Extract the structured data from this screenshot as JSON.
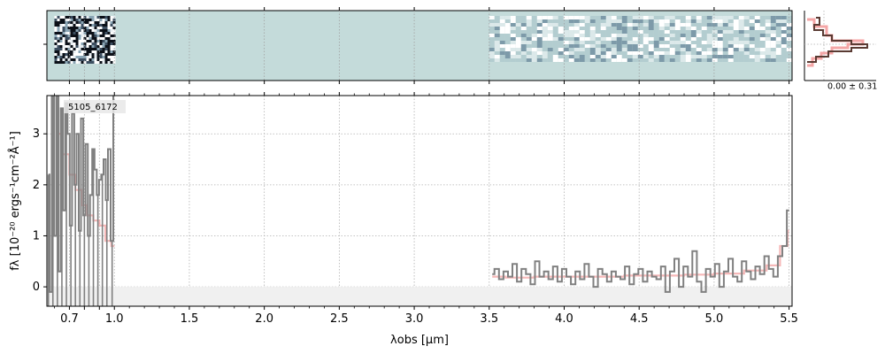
{
  "chart_data": [
    {
      "panel": "2d-spectrum",
      "type": "heatmap",
      "description_colors": {
        "background": "#c4dbda",
        "dark": "#0a0f1a"
      },
      "regions_um": [
        [
          0.6,
          1.0
        ],
        [
          3.5,
          5.5
        ]
      ]
    },
    {
      "panel": "1d-spectrum",
      "type": "line",
      "object_label": "5105_6172",
      "xlabel": "λobs [μm]",
      "ylabel": "fλ [10⁻²⁰ ergs⁻¹cm⁻²Å⁻¹]",
      "xlim": [
        0.55,
        5.52
      ],
      "ylim": [
        -0.38,
        3.75
      ],
      "x_ticks": [
        0.7,
        0.8,
        0.9,
        1.0,
        1.5,
        2.0,
        2.5,
        3.0,
        3.5,
        4.0,
        4.5,
        5.0,
        5.5
      ],
      "x_tick_labels": [
        "0.7",
        "",
        "",
        "1.0",
        "1.5",
        "2.0",
        "2.5",
        "3.0",
        "3.5",
        "4.0",
        "4.5",
        "5.0",
        "5.5"
      ],
      "y_ticks": [
        0,
        1,
        2,
        3
      ],
      "y_tick_labels": [
        "0",
        "1",
        "2",
        "3"
      ],
      "grid": true,
      "series": [
        {
          "role": "data",
          "color": "#808080",
          "segments": [
            {
              "x": [
                0.56,
                0.575,
                0.59,
                0.605,
                0.62,
                0.635,
                0.65,
                0.665,
                0.68,
                0.695,
                0.71,
                0.725,
                0.74,
                0.755,
                0.77,
                0.785,
                0.8,
                0.815,
                0.83,
                0.845,
                0.86,
                0.875,
                0.89,
                0.905,
                0.92,
                0.935,
                0.95,
                0.965,
                0.985,
                1.0
              ],
              "y": [
                2.2,
                -0.1,
                3.9,
                1.0,
                3.8,
                0.3,
                3.5,
                1.5,
                3.6,
                3.0,
                1.2,
                3.4,
                2.0,
                3.0,
                1.1,
                3.3,
                1.4,
                2.8,
                1.0,
                1.8,
                2.7,
                2.3,
                1.8,
                2.1,
                2.2,
                2.5,
                1.7,
                2.7,
                0.9,
                3.8
              ]
            },
            {
              "x": [
                3.52,
                3.55,
                3.58,
                3.61,
                3.64,
                3.67,
                3.7,
                3.73,
                3.76,
                3.79,
                3.82,
                3.85,
                3.88,
                3.91,
                3.94,
                3.97,
                4.0,
                4.03,
                4.06,
                4.09,
                4.12,
                4.15,
                4.18,
                4.21,
                4.24,
                4.27,
                4.3,
                4.33,
                4.36,
                4.39,
                4.42,
                4.45,
                4.48,
                4.51,
                4.54,
                4.57,
                4.6,
                4.63,
                4.66,
                4.69,
                4.72,
                4.75,
                4.78,
                4.81,
                4.84,
                4.87,
                4.9,
                4.93,
                4.96,
                4.99,
                5.02,
                5.05,
                5.08,
                5.11,
                5.14,
                5.17,
                5.2,
                5.23,
                5.26,
                5.29,
                5.32,
                5.35,
                5.38,
                5.41,
                5.44,
                5.47,
                5.5
              ],
              "y": [
                0.25,
                0.35,
                0.15,
                0.3,
                0.2,
                0.45,
                0.1,
                0.35,
                0.25,
                0.05,
                0.5,
                0.2,
                0.3,
                0.15,
                0.4,
                0.1,
                0.35,
                0.2,
                0.05,
                0.3,
                0.15,
                0.45,
                0.2,
                0.0,
                0.35,
                0.25,
                0.1,
                0.3,
                0.2,
                0.15,
                0.4,
                0.05,
                0.25,
                0.35,
                0.1,
                0.3,
                0.2,
                0.15,
                0.4,
                -0.1,
                0.3,
                0.55,
                0.0,
                0.4,
                0.2,
                0.7,
                0.1,
                -0.1,
                0.35,
                0.2,
                0.45,
                0.0,
                0.3,
                0.55,
                0.2,
                0.1,
                0.5,
                0.3,
                0.15,
                0.4,
                0.25,
                0.6,
                0.35,
                0.2,
                0.6,
                0.8,
                1.5
              ]
            }
          ]
        },
        {
          "role": "model",
          "color": "#f4a6a6",
          "segments": [
            {
              "x": [
                0.63,
                0.68,
                0.72,
                0.76,
                0.8,
                0.84,
                0.88,
                0.92,
                0.96,
                1.0
              ],
              "y": [
                3.0,
                2.6,
                2.2,
                1.9,
                1.6,
                1.4,
                1.3,
                1.2,
                0.9,
                0.8
              ]
            },
            {
              "x": [
                3.52,
                3.7,
                3.9,
                4.1,
                4.3,
                4.5,
                4.7,
                4.9,
                5.1,
                5.3,
                5.4,
                5.48,
                5.5
              ],
              "y": [
                0.2,
                0.18,
                0.2,
                0.2,
                0.2,
                0.22,
                0.22,
                0.24,
                0.26,
                0.32,
                0.42,
                0.8,
                1.1
              ]
            }
          ]
        }
      ]
    },
    {
      "panel": "profile",
      "type": "line",
      "annotation": "0.00 ± 0.31"
    }
  ]
}
